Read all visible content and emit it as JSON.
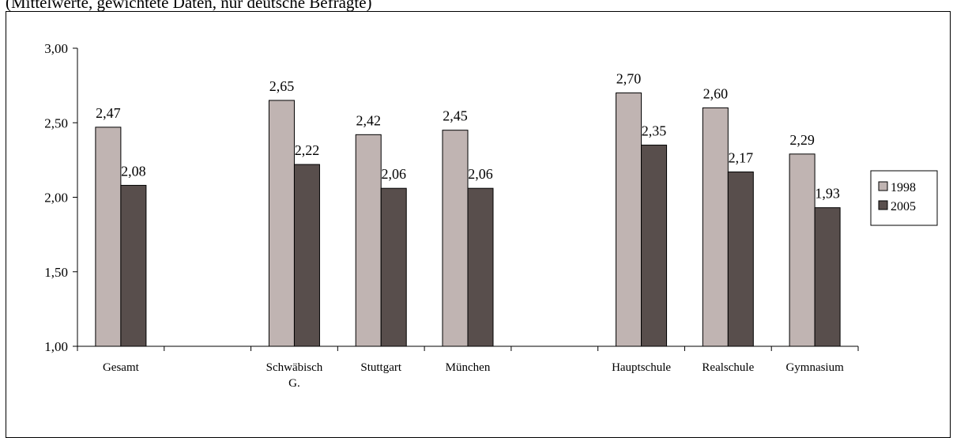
{
  "caption": "(Mittelwerte, gewichtete Daten, nur deutsche Befragte)",
  "colors": {
    "series_1998": "#c0b4b2",
    "series_2005": "#584e4c",
    "axis": "#000000"
  },
  "chart_data": {
    "type": "bar",
    "title": "",
    "xlabel": "",
    "ylabel": "",
    "ylim": [
      1.0,
      3.0
    ],
    "yticks": [
      "1,00",
      "1,50",
      "2,00",
      "2,50",
      "3,00"
    ],
    "grid": false,
    "legend_position": "right",
    "categories": [
      [
        "Gesamt"
      ],
      [],
      [
        "Schwäbisch",
        "G."
      ],
      [
        "Stuttgart"
      ],
      [
        "München"
      ],
      [],
      [
        "Hauptschule"
      ],
      [
        "Realschule"
      ],
      [
        "Gymnasium"
      ]
    ],
    "series": [
      {
        "name": "1998",
        "values": [
          2.47,
          null,
          2.65,
          2.42,
          2.45,
          null,
          2.7,
          2.6,
          2.29
        ],
        "labels": [
          "2,47",
          "",
          "2,65",
          "2,42",
          "2,45",
          "",
          "2,70",
          "2,60",
          "2,29"
        ]
      },
      {
        "name": "2005",
        "values": [
          2.08,
          null,
          2.22,
          2.06,
          2.06,
          null,
          2.35,
          2.17,
          1.93
        ],
        "labels": [
          "2,08",
          "",
          "2,22",
          "2,06",
          "2,06",
          "",
          "2,35",
          "2,17",
          "1,93"
        ]
      }
    ]
  }
}
